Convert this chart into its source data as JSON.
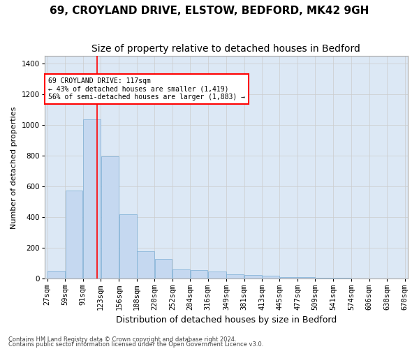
{
  "title": "69, CROYLAND DRIVE, ELSTOW, BEDFORD, MK42 9GH",
  "subtitle": "Size of property relative to detached houses in Bedford",
  "xlabel": "Distribution of detached houses by size in Bedford",
  "ylabel": "Number of detached properties",
  "footnote1": "Contains HM Land Registry data © Crown copyright and database right 2024.",
  "footnote2": "Contains public sector information licensed under the Open Government Licence v3.0.",
  "bar_color": "#c5d8f0",
  "bar_edge_color": "#7aadd4",
  "bin_edges": [
    27,
    59,
    91,
    123,
    156,
    188,
    220,
    252,
    284,
    316,
    349,
    381,
    413,
    445,
    477,
    509,
    541,
    574,
    606,
    638,
    670
  ],
  "bar_heights": [
    50,
    575,
    1040,
    795,
    420,
    180,
    130,
    60,
    55,
    45,
    30,
    25,
    20,
    10,
    10,
    5,
    5,
    2,
    0,
    0
  ],
  "xtick_labels": [
    "27sqm",
    "59sqm",
    "91sqm",
    "123sqm",
    "156sqm",
    "188sqm",
    "220sqm",
    "252sqm",
    "284sqm",
    "316sqm",
    "349sqm",
    "381sqm",
    "413sqm",
    "445sqm",
    "477sqm",
    "509sqm",
    "541sqm",
    "574sqm",
    "606sqm",
    "638sqm",
    "670sqm"
  ],
  "ylim": [
    0,
    1450
  ],
  "yticks": [
    0,
    200,
    400,
    600,
    800,
    1000,
    1200,
    1400
  ],
  "grid_color": "#cccccc",
  "bg_color": "#dce8f5",
  "red_line_x": 117,
  "annotation_line1": "69 CROYLAND DRIVE: 117sqm",
  "annotation_line2": "← 43% of detached houses are smaller (1,419)",
  "annotation_line3": "56% of semi-detached houses are larger (1,883) →",
  "title_fontsize": 11,
  "subtitle_fontsize": 10,
  "xlabel_fontsize": 9,
  "ylabel_fontsize": 8,
  "tick_fontsize": 7.5,
  "annot_fontsize": 7,
  "footnote_fontsize": 6
}
